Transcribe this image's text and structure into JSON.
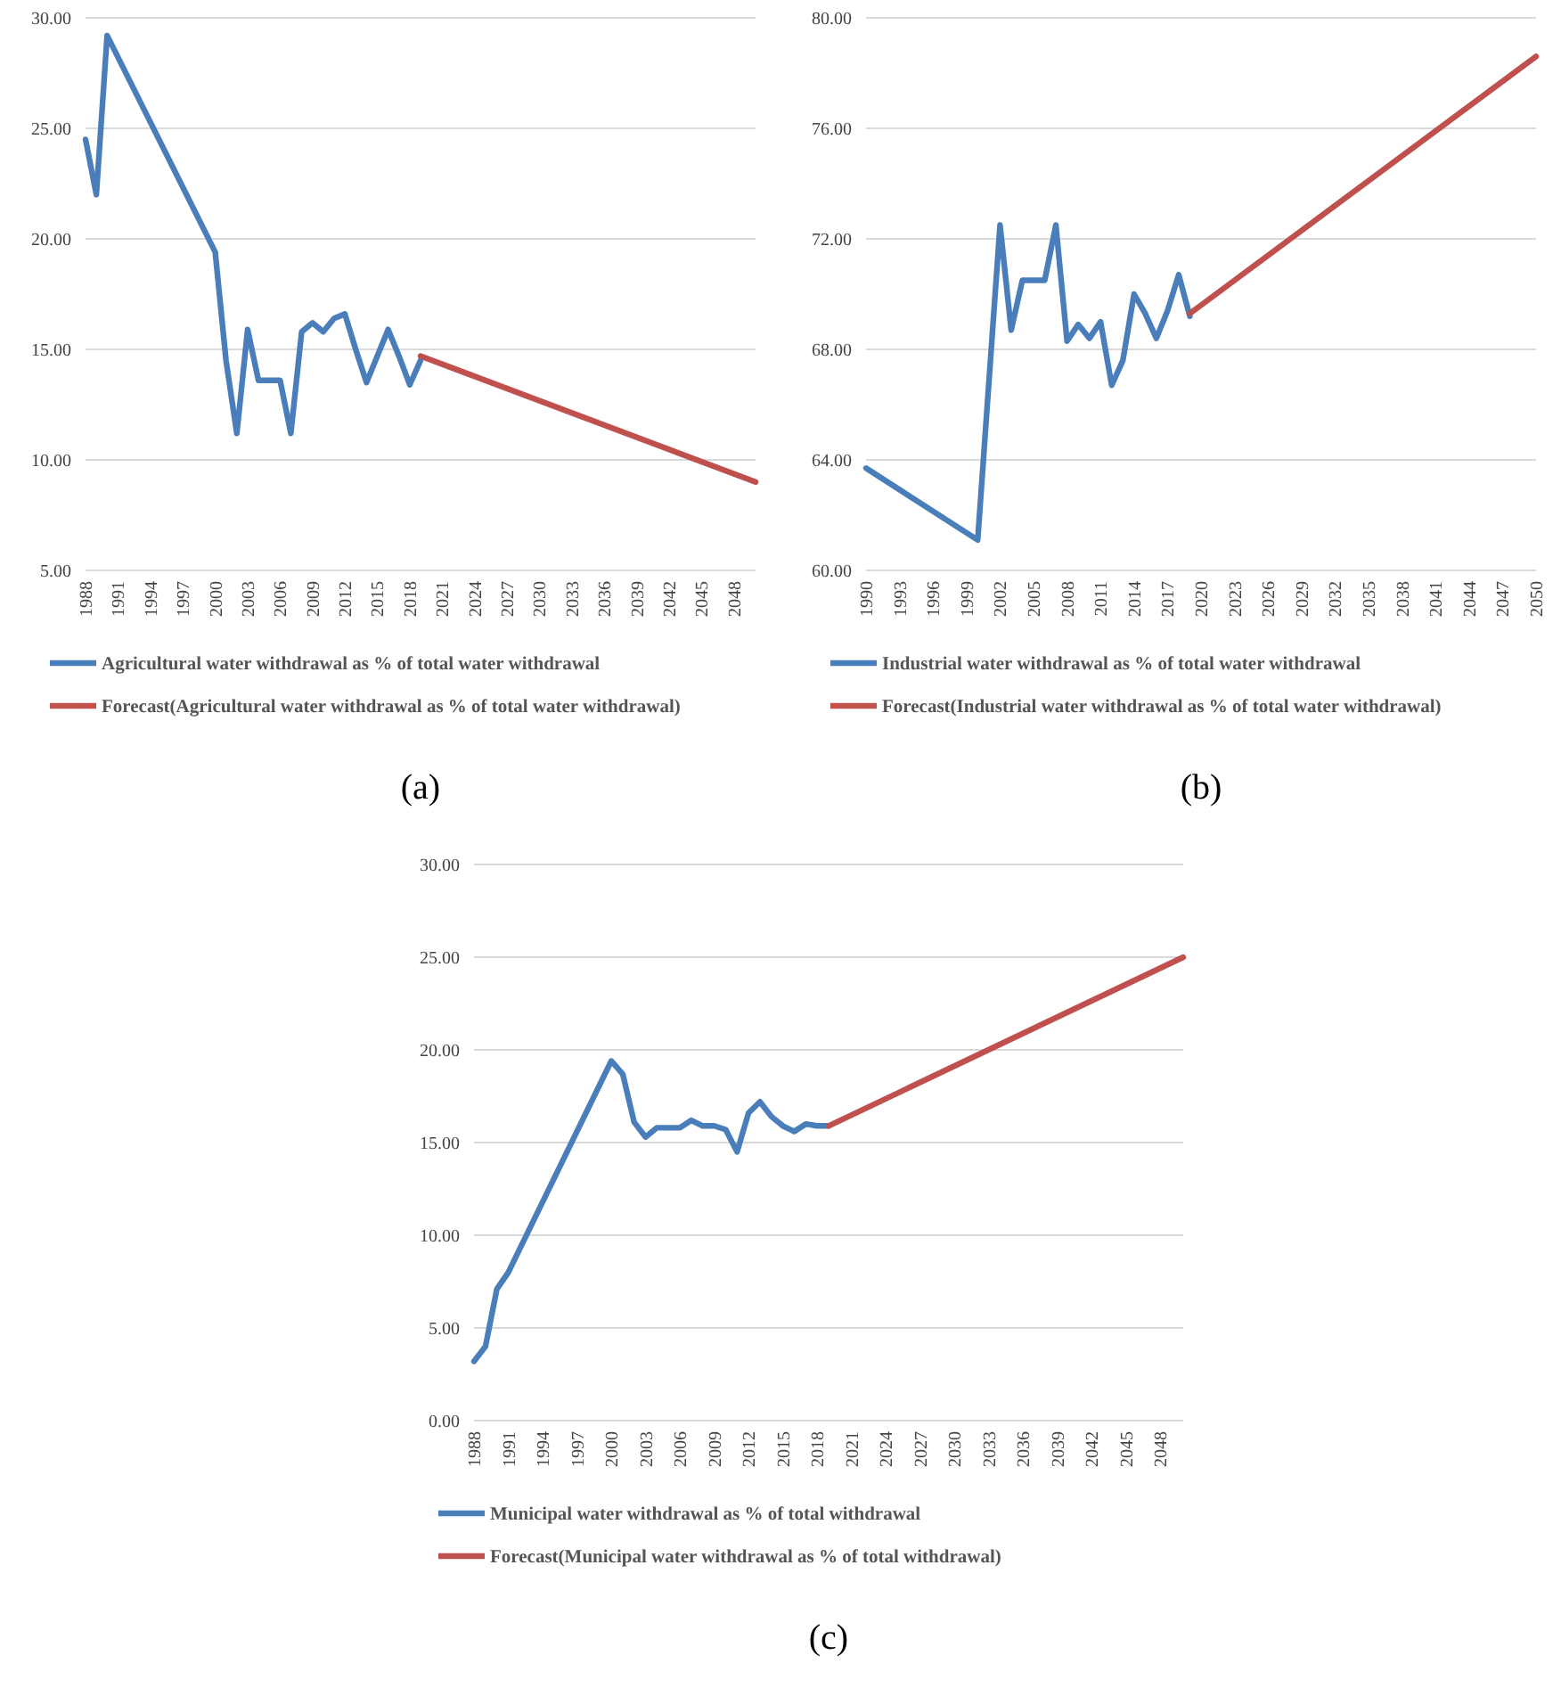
{
  "chart_data": [
    {
      "type": "line",
      "annotations": [
        "(a)"
      ],
      "xlim": [
        1988,
        2050
      ],
      "xticks": [
        1988,
        1991,
        1994,
        1997,
        2000,
        2003,
        2006,
        2009,
        2012,
        2015,
        2018,
        2021,
        2024,
        2027,
        2030,
        2033,
        2036,
        2039,
        2042,
        2045,
        2048
      ],
      "ylim": [
        5,
        30
      ],
      "yticks": [
        {
          "value": 5,
          "label": "5.00"
        },
        {
          "value": 10,
          "label": "10.00"
        },
        {
          "value": 15,
          "label": "15.00"
        },
        {
          "value": 20,
          "label": "20.00"
        },
        {
          "value": 25,
          "label": "25.00"
        },
        {
          "value": 30,
          "label": "30.00"
        }
      ],
      "grid": "y",
      "legend": "bottom",
      "line_style": "solid",
      "marker": "none",
      "series": [
        {
          "name": "Agricultural water withdrawal as % of total water withdrawal",
          "color": "#4a7ebb",
          "x": [
            1988,
            1989,
            1990,
            2000,
            2001,
            2002,
            2003,
            2004,
            2005,
            2006,
            2007,
            2008,
            2009,
            2010,
            2011,
            2012,
            2013,
            2014,
            2015,
            2016,
            2017,
            2018,
            2019
          ],
          "values": [
            24.5,
            22.0,
            29.2,
            19.4,
            14.5,
            11.2,
            15.9,
            13.6,
            13.6,
            13.6,
            11.2,
            15.8,
            16.2,
            15.8,
            16.4,
            16.6,
            15.0,
            13.5,
            14.7,
            15.9,
            14.7,
            13.4,
            14.5
          ]
        },
        {
          "name": "Forecast(Agricultural water withdrawal as % of total water withdrawal)",
          "color": "#c0504d",
          "x": [
            2019,
            2050
          ],
          "values": [
            14.7,
            9.0
          ]
        }
      ]
    },
    {
      "type": "line",
      "annotations": [
        "(b)"
      ],
      "xlim": [
        1990,
        2050
      ],
      "xticks": [
        1990,
        1993,
        1996,
        1999,
        2002,
        2005,
        2008,
        2011,
        2014,
        2017,
        2020,
        2023,
        2026,
        2029,
        2032,
        2035,
        2038,
        2041,
        2044,
        2047,
        2050
      ],
      "ylim": [
        60,
        80
      ],
      "yticks": [
        {
          "value": 60,
          "label": "60.00"
        },
        {
          "value": 64,
          "label": "64.00"
        },
        {
          "value": 68,
          "label": "68.00"
        },
        {
          "value": 72,
          "label": "72.00"
        },
        {
          "value": 76,
          "label": "76.00"
        },
        {
          "value": 80,
          "label": "80.00"
        }
      ],
      "grid": "y",
      "legend": "bottom",
      "line_style": "solid",
      "marker": "none",
      "series": [
        {
          "name": "Industrial water withdrawal as % of total water withdrawal",
          "color": "#4a7ebb",
          "x": [
            1990,
            2000,
            2002,
            2003,
            2004,
            2006,
            2007,
            2008,
            2009,
            2010,
            2011,
            2012,
            2013,
            2014,
            2015,
            2016,
            2017,
            2018,
            2019
          ],
          "values": [
            63.7,
            61.1,
            72.5,
            68.7,
            70.5,
            70.5,
            72.5,
            68.3,
            68.9,
            68.4,
            69.0,
            66.7,
            67.6,
            70.0,
            69.3,
            68.4,
            69.4,
            70.7,
            69.2
          ]
        },
        {
          "name": "Forecast(Industrial water withdrawal as % of total water withdrawal)",
          "color": "#c0504d",
          "x": [
            2019,
            2050
          ],
          "values": [
            69.3,
            78.6
          ]
        }
      ]
    },
    {
      "type": "line",
      "annotations": [
        "(c)"
      ],
      "xlim": [
        1988,
        2050
      ],
      "xticks": [
        1988,
        1991,
        1994,
        1997,
        2000,
        2003,
        2006,
        2009,
        2012,
        2015,
        2018,
        2021,
        2024,
        2027,
        2030,
        2033,
        2036,
        2039,
        2042,
        2045,
        2048
      ],
      "ylim": [
        0,
        30
      ],
      "yticks": [
        {
          "value": 0,
          "label": "0.00"
        },
        {
          "value": 5,
          "label": "5.00"
        },
        {
          "value": 10,
          "label": "10.00"
        },
        {
          "value": 15,
          "label": "15.00"
        },
        {
          "value": 20,
          "label": "20.00"
        },
        {
          "value": 25,
          "label": "25.00"
        },
        {
          "value": 30,
          "label": "30.00"
        }
      ],
      "grid": "y",
      "legend": "bottom",
      "line_style": "solid",
      "marker": "none",
      "series": [
        {
          "name": "Municipal water withdrawal as % of total withdrawal",
          "color": "#4a7ebb",
          "x": [
            1988,
            1989,
            1990,
            1991,
            2000,
            2001,
            2002,
            2003,
            2004,
            2005,
            2006,
            2007,
            2008,
            2009,
            2010,
            2011,
            2012,
            2013,
            2014,
            2015,
            2016,
            2017,
            2018,
            2019
          ],
          "values": [
            3.2,
            4.0,
            7.1,
            8.0,
            19.4,
            18.7,
            16.1,
            15.3,
            15.8,
            15.8,
            15.8,
            16.2,
            15.9,
            15.9,
            15.7,
            14.5,
            16.6,
            17.2,
            16.4,
            15.9,
            15.6,
            16.0,
            15.9,
            15.9
          ]
        },
        {
          "name": "Forecast(Municipal water withdrawal as % of total withdrawal)",
          "color": "#c0504d",
          "x": [
            2019,
            2050
          ],
          "values": [
            15.9,
            25.0
          ]
        }
      ]
    }
  ]
}
